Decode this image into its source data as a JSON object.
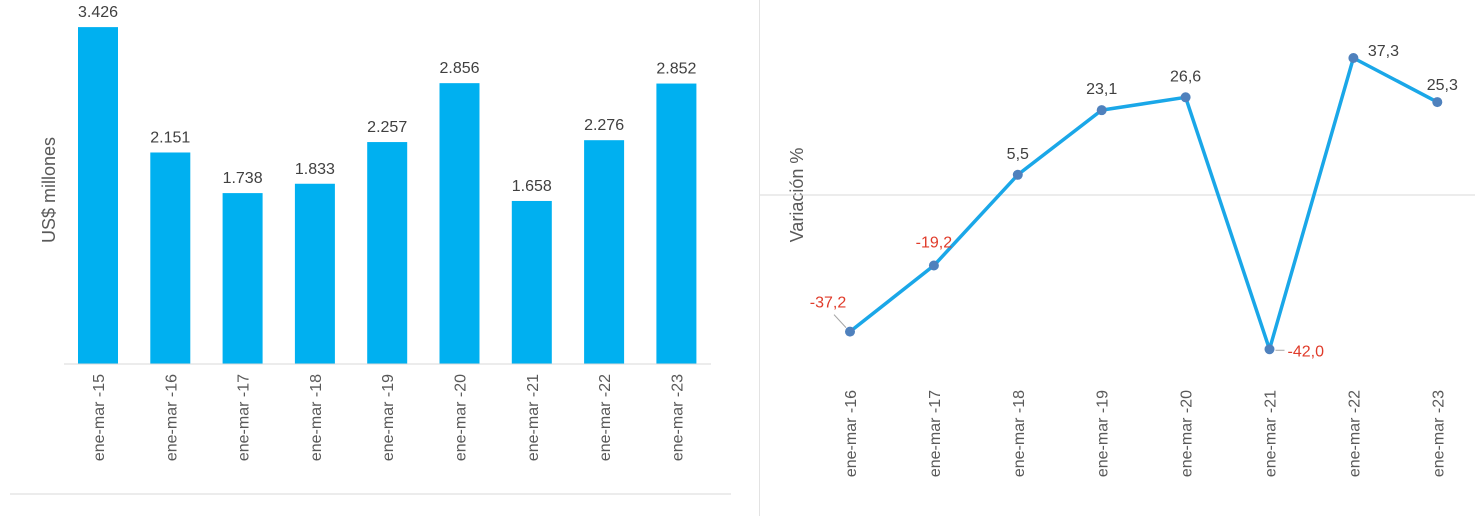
{
  "colors": {
    "bar": "#00b0f0",
    "line": "#1aa7e8",
    "marker": "#4f81bd",
    "positive_label": "#404040",
    "negative_label": "#e03b2a",
    "axis_line": "#d9d9d9"
  },
  "chart_data": [
    {
      "type": "bar",
      "ylabel": "US$ millones",
      "categories": [
        "ene-mar -15",
        "ene-mar -16",
        "ene-mar -17",
        "ene-mar -18",
        "ene-mar -19",
        "ene-mar -20",
        "ene-mar -21",
        "ene-mar -22",
        "ene-mar -23"
      ],
      "values": [
        3426,
        2151,
        1738,
        1833,
        2257,
        2856,
        1658,
        2276,
        2852
      ],
      "value_labels": [
        "3.426",
        "2.151",
        "1.738",
        "1.833",
        "2.257",
        "2.856",
        "1.658",
        "2.276",
        "2.852"
      ],
      "ylim": [
        0,
        3600
      ],
      "grid": false
    },
    {
      "type": "line",
      "ylabel": "Variación %",
      "categories": [
        "ene-mar -16",
        "ene-mar -17",
        "ene-mar -18",
        "ene-mar -19",
        "ene-mar -20",
        "ene-mar -21",
        "ene-mar -22",
        "ene-mar -23"
      ],
      "values": [
        -37.2,
        -19.2,
        5.5,
        23.1,
        26.6,
        -42.0,
        37.3,
        25.3
      ],
      "value_labels": [
        "-37,2",
        "-19,2",
        "5,5",
        "23,1",
        "26,6",
        "-42,0",
        "37,3",
        "25,3"
      ],
      "ylim": [
        -45,
        40
      ],
      "zero_line": true,
      "grid": false
    }
  ]
}
